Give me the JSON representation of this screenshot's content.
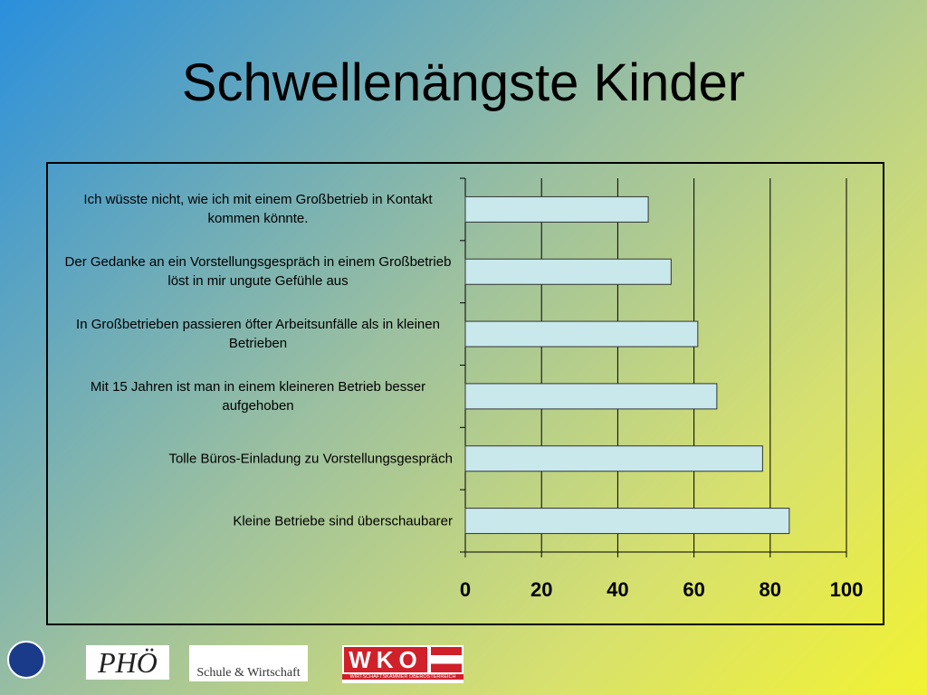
{
  "chart_data": {
    "type": "bar",
    "orientation": "horizontal",
    "title": "Schwellenängste Kinder",
    "categories": [
      "Ich wüsste nicht, wie ich mit einem Großbetrieb in Kontakt kommen könnte.",
      "Der Gedanke an ein Vorstellungsgespräch in einem Großbetrieb löst in mir ungute Gefühle aus",
      "In Großbetrieben passieren öfter Arbeitsunfälle als in kleinen Betrieben",
      "Mit 15 Jahren ist man in einem kleineren Betrieb besser aufgehoben",
      "Tolle Büros-Einladung zu Vorstellungsgespräch",
      "Kleine Betriebe sind überschaubarer"
    ],
    "values": [
      48,
      54,
      61,
      66,
      78,
      85
    ],
    "color": "#c8e8ec",
    "xlim": [
      0,
      100
    ],
    "xticks": [
      0,
      20,
      40,
      60,
      80,
      100
    ],
    "grid": true
  },
  "logos": [
    "PHÖ",
    "Schule & Wirtschaft",
    "WKO",
    "WIRTSCHAFTSKAMMER OBERÖSTERREICH"
  ]
}
